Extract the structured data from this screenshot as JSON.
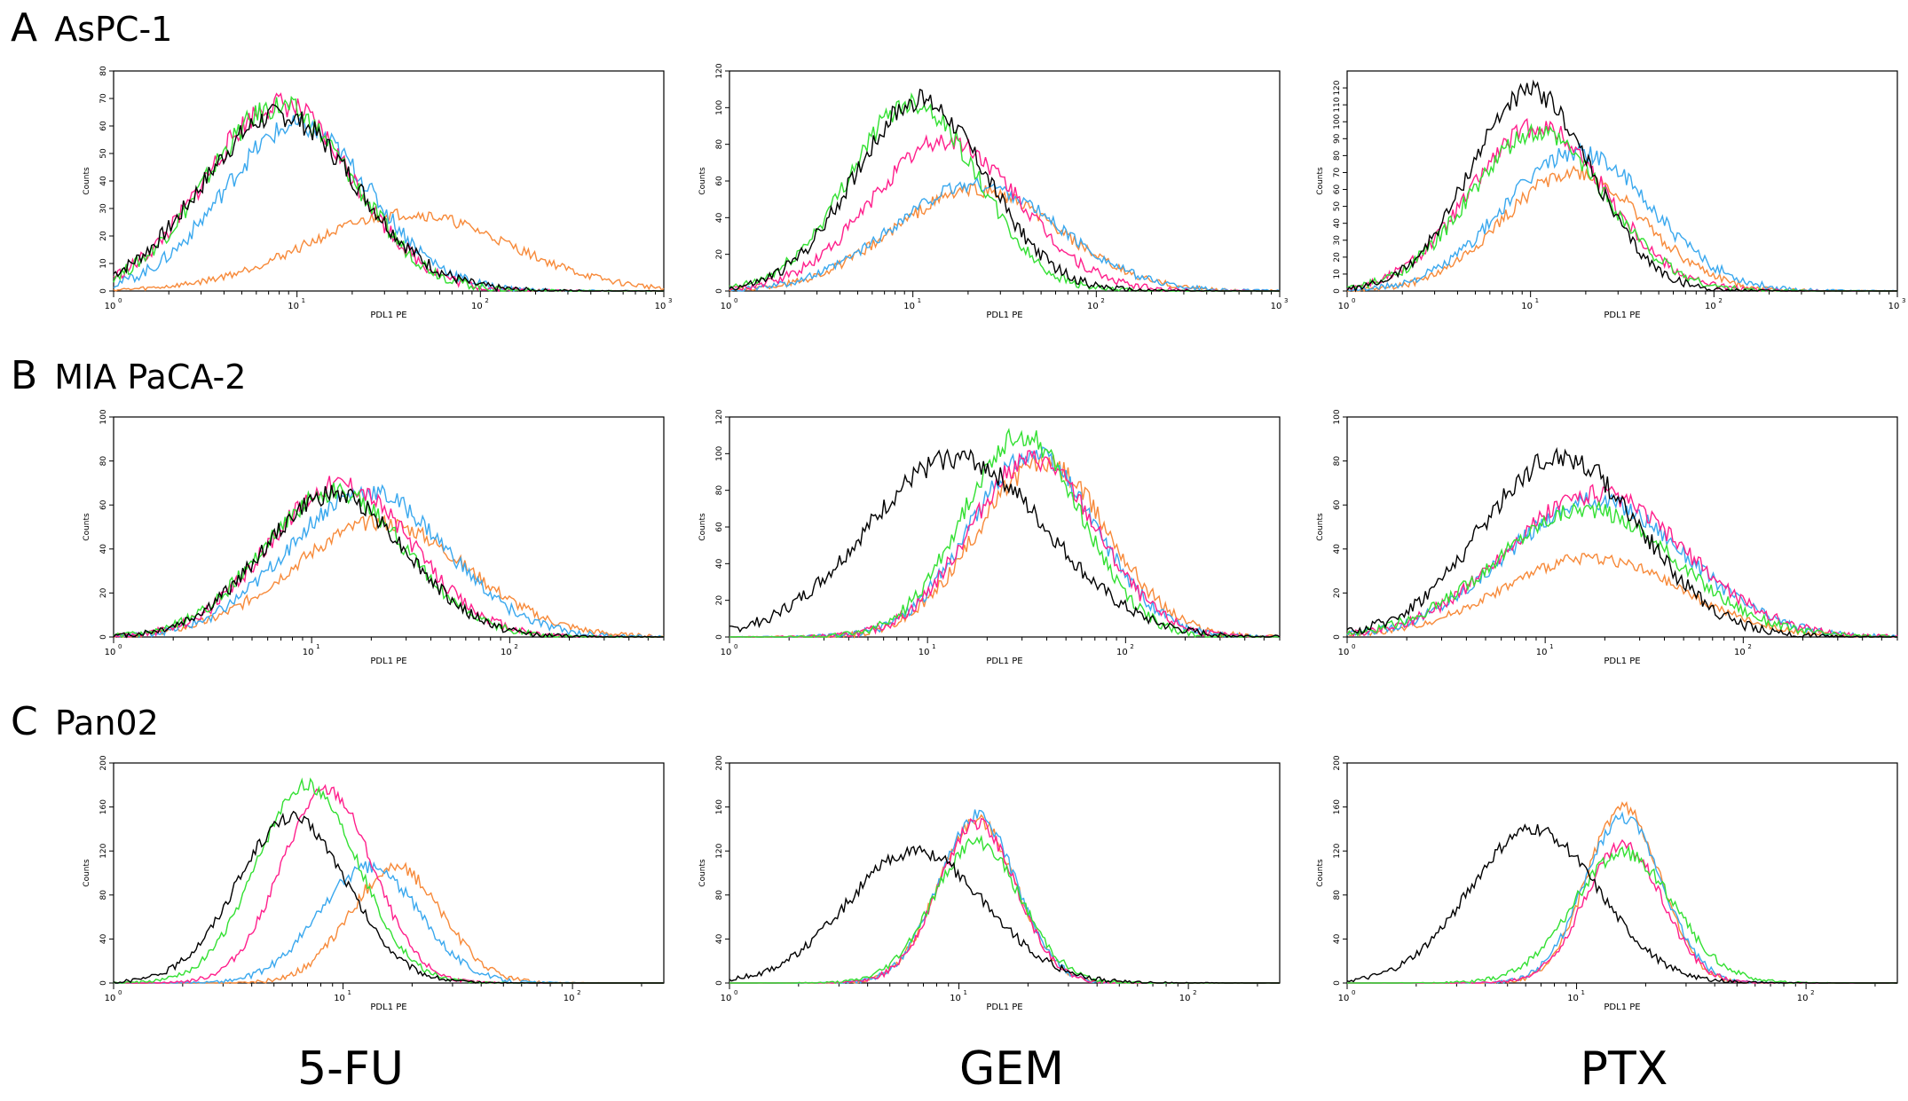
{
  "rows": [
    {
      "letter": "A",
      "name": "AsPC-1"
    },
    {
      "letter": "B",
      "name": "MIA PaCA-2"
    },
    {
      "letter": "C",
      "name": "Pan02"
    }
  ],
  "columns": [
    "5-FU",
    "GEM",
    "PTX"
  ],
  "series_colors": [
    "#000000",
    "#33e033",
    "#ff1f8c",
    "#3aa8ee",
    "#f78a3a"
  ],
  "chart_data": [
    {
      "type": "line",
      "row": "A",
      "column": "5-FU",
      "xlabel": "PDL1 PE",
      "ylabel": "Counts",
      "xscale": "log",
      "xlim": [
        1,
        1000
      ],
      "ylim": [
        0,
        80
      ],
      "yticks": [
        0,
        10,
        20,
        30,
        40,
        50,
        60,
        70,
        80
      ],
      "xticks": [
        "10^0",
        "10^1",
        "10^2",
        "10^3"
      ],
      "series": [
        {
          "peak_x": 8,
          "peak_y": 64,
          "width": 0.42
        },
        {
          "peak_x": 8,
          "peak_y": 67,
          "width": 0.4
        },
        {
          "peak_x": 8,
          "peak_y": 68,
          "width": 0.4
        },
        {
          "peak_x": 10,
          "peak_y": 60,
          "width": 0.4
        },
        {
          "peak_x": 40,
          "peak_y": 28,
          "width": 0.55
        }
      ]
    },
    {
      "type": "line",
      "row": "A",
      "column": "GEM",
      "xlabel": "PDL1 PE",
      "ylabel": "Counts",
      "xscale": "log",
      "xlim": [
        1,
        1000
      ],
      "ylim": [
        0,
        120
      ],
      "yticks": [
        0,
        20,
        40,
        60,
        80,
        100,
        120
      ],
      "xticks": [
        "10^0",
        "10^1",
        "10^2",
        "10^3"
      ],
      "series": [
        {
          "peak_x": 11,
          "peak_y": 104,
          "width": 0.36
        },
        {
          "peak_x": 10,
          "peak_y": 103,
          "width": 0.35
        },
        {
          "peak_x": 15,
          "peak_y": 82,
          "width": 0.4
        },
        {
          "peak_x": 22,
          "peak_y": 58,
          "width": 0.45
        },
        {
          "peak_x": 22,
          "peak_y": 55,
          "width": 0.45
        }
      ]
    },
    {
      "type": "line",
      "row": "A",
      "column": "PTX",
      "xlabel": "PDL1 PE",
      "ylabel": "Counts",
      "xscale": "log",
      "xlim": [
        1,
        1000
      ],
      "ylim": [
        0,
        130
      ],
      "yticks": [
        0,
        10,
        20,
        30,
        40,
        50,
        60,
        70,
        80,
        90,
        100,
        110,
        120
      ],
      "xticks": [
        "10^0",
        "10^1",
        "10^2",
        "10^3"
      ],
      "series": [
        {
          "peak_x": 10,
          "peak_y": 118,
          "width": 0.33
        },
        {
          "peak_x": 11,
          "peak_y": 93,
          "width": 0.37
        },
        {
          "peak_x": 11,
          "peak_y": 97,
          "width": 0.37
        },
        {
          "peak_x": 18,
          "peak_y": 82,
          "width": 0.4
        },
        {
          "peak_x": 17,
          "peak_y": 70,
          "width": 0.38
        }
      ]
    },
    {
      "type": "line",
      "row": "B",
      "column": "5-FU",
      "xlabel": "PDL1 PE",
      "ylabel": "Counts",
      "xscale": "log",
      "xlim": [
        1,
        600
      ],
      "ylim": [
        0,
        100
      ],
      "yticks": [
        0,
        20,
        40,
        60,
        80,
        100
      ],
      "xticks": [
        "10^0",
        "10^1",
        "10^2"
      ],
      "series": [
        {
          "peak_x": 13,
          "peak_y": 65,
          "width": 0.36
        },
        {
          "peak_x": 13,
          "peak_y": 66,
          "width": 0.36
        },
        {
          "peak_x": 14,
          "peak_y": 70,
          "width": 0.36
        },
        {
          "peak_x": 19,
          "peak_y": 66,
          "width": 0.4
        },
        {
          "peak_x": 22,
          "peak_y": 52,
          "width": 0.44
        }
      ]
    },
    {
      "type": "line",
      "row": "B",
      "column": "GEM",
      "xlabel": "PDL1 PE",
      "ylabel": "Counts",
      "xscale": "log",
      "xlim": [
        1,
        600
      ],
      "ylim": [
        0,
        120
      ],
      "yticks": [
        0,
        20,
        40,
        60,
        80,
        100,
        120
      ],
      "xticks": [
        "10^0",
        "10^1",
        "10^2"
      ],
      "series": [
        {
          "peak_x": 14,
          "peak_y": 98,
          "width": 0.45
        },
        {
          "peak_x": 30,
          "peak_y": 110,
          "width": 0.3
        },
        {
          "peak_x": 34,
          "peak_y": 97,
          "width": 0.32
        },
        {
          "peak_x": 34,
          "peak_y": 99,
          "width": 0.32
        },
        {
          "peak_x": 38,
          "peak_y": 95,
          "width": 0.33
        }
      ]
    },
    {
      "type": "line",
      "row": "B",
      "column": "PTX",
      "xlabel": "PDL1 PE",
      "ylabel": "Counts",
      "xscale": "log",
      "xlim": [
        1,
        600
      ],
      "ylim": [
        0,
        100
      ],
      "yticks": [
        0,
        20,
        40,
        60,
        80,
        100
      ],
      "xticks": [
        "10^0",
        "10^1",
        "10^2"
      ],
      "series": [
        {
          "peak_x": 12,
          "peak_y": 82,
          "width": 0.4
        },
        {
          "peak_x": 16,
          "peak_y": 58,
          "width": 0.45
        },
        {
          "peak_x": 18,
          "peak_y": 65,
          "width": 0.45
        },
        {
          "peak_x": 18,
          "peak_y": 62,
          "width": 0.45
        },
        {
          "peak_x": 17,
          "peak_y": 36,
          "width": 0.45
        }
      ]
    },
    {
      "type": "line",
      "row": "C",
      "column": "5-FU",
      "xlabel": "PDL1 PE",
      "ylabel": "Counts",
      "xscale": "log",
      "xlim": [
        1,
        250
      ],
      "ylim": [
        0,
        200
      ],
      "yticks": [
        0,
        40,
        80,
        120,
        160,
        200
      ],
      "xticks": [
        "10^0",
        "10^1",
        "10^2"
      ],
      "series": [
        {
          "peak_x": 6,
          "peak_y": 150,
          "width": 0.24
        },
        {
          "peak_x": 7,
          "peak_y": 180,
          "width": 0.22
        },
        {
          "peak_x": 8.5,
          "peak_y": 175,
          "width": 0.2
        },
        {
          "peak_x": 13,
          "peak_y": 105,
          "width": 0.22
        },
        {
          "peak_x": 17,
          "peak_y": 105,
          "width": 0.2
        }
      ]
    },
    {
      "type": "line",
      "row": "C",
      "column": "GEM",
      "xlabel": "PDL1 PE",
      "ylabel": "Counts",
      "xscale": "log",
      "xlim": [
        1,
        250
      ],
      "ylim": [
        0,
        200
      ],
      "yticks": [
        0,
        40,
        80,
        120,
        160,
        200
      ],
      "xticks": [
        "10^0",
        "10^1",
        "10^2"
      ],
      "series": [
        {
          "peak_x": 6.5,
          "peak_y": 120,
          "width": 0.3
        },
        {
          "peak_x": 12,
          "peak_y": 128,
          "width": 0.19
        },
        {
          "peak_x": 12,
          "peak_y": 145,
          "width": 0.17
        },
        {
          "peak_x": 12,
          "peak_y": 152,
          "width": 0.17
        },
        {
          "peak_x": 12,
          "peak_y": 148,
          "width": 0.17
        }
      ]
    },
    {
      "type": "line",
      "row": "C",
      "column": "PTX",
      "xlabel": "PDL1 PE",
      "ylabel": "Counts",
      "xscale": "log",
      "xlim": [
        1,
        250
      ],
      "ylim": [
        0,
        200
      ],
      "yticks": [
        0,
        40,
        80,
        120,
        160,
        200
      ],
      "xticks": [
        "10^0",
        "10^1",
        "10^2"
      ],
      "series": [
        {
          "peak_x": 6.5,
          "peak_y": 140,
          "width": 0.28
        },
        {
          "peak_x": 16,
          "peak_y": 118,
          "width": 0.22
        },
        {
          "peak_x": 16,
          "peak_y": 125,
          "width": 0.17
        },
        {
          "peak_x": 16,
          "peak_y": 150,
          "width": 0.17
        },
        {
          "peak_x": 16,
          "peak_y": 160,
          "width": 0.16
        }
      ]
    }
  ]
}
